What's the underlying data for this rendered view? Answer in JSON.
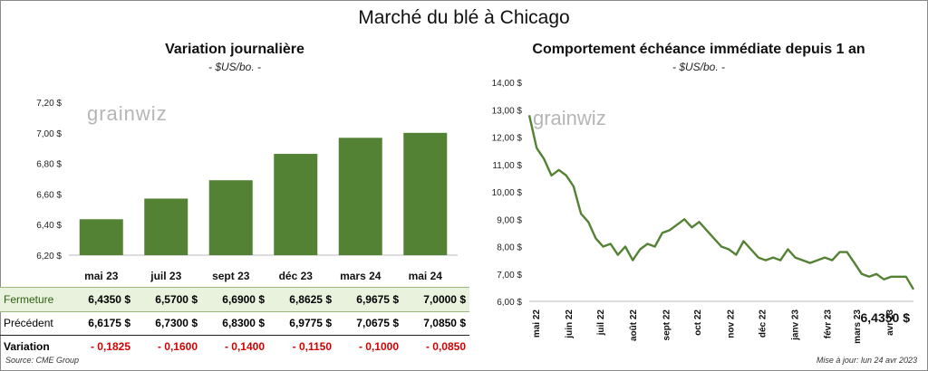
{
  "title": "Marché du blé à Chicago",
  "left": {
    "title": "Variation journalière",
    "unit": "- $US/bo. -",
    "logo": "grainwiz"
  },
  "right": {
    "title": "Comportement échéance immédiate depuis 1 an",
    "unit": "- $US/bo. -",
    "logo": "grainwiz",
    "last_value": "6,4350 $"
  },
  "table": {
    "close_label": "Fermeture",
    "prev_label": "Précédent",
    "var_label": "Variation",
    "close": [
      "6,4350  $",
      "6,5700  $",
      "6,6900  $",
      "6,8625  $",
      "6,9675  $",
      "7,0000  $"
    ],
    "prev": [
      "6,6175  $",
      "6,7300  $",
      "6,8300  $",
      "6,9775  $",
      "7,0675  $",
      "7,0850  $"
    ],
    "variation": [
      "- 0,1825",
      "- 0,1600",
      "- 0,1400",
      "- 0,1150",
      "- 0,1000",
      "- 0,0850"
    ]
  },
  "source": "Source: CME Group",
  "updated": "Mise à jour: lun 24 avr 2023",
  "colors": {
    "bar": "#548235",
    "line": "#548235",
    "negative": "#d40000",
    "highlight_row": "#e8f2dc"
  },
  "chart_data": [
    {
      "type": "bar",
      "categories": [
        "mai 23",
        "juil 23",
        "sept 23",
        "déc 23",
        "mars 24",
        "mai 24"
      ],
      "values": [
        6.435,
        6.57,
        6.69,
        6.8625,
        6.9675,
        7.0
      ],
      "yticks": [
        "6,20 $",
        "6,40 $",
        "6,60 $",
        "6,80 $",
        "7,00 $",
        "7,20 $"
      ],
      "ylim": [
        6.2,
        7.2
      ],
      "title": "Variation journalière"
    },
    {
      "type": "line",
      "xticks": [
        "mai 22",
        "juin 22",
        "juil 22",
        "août 22",
        "sept 22",
        "oct 22",
        "nov 22",
        "déc 22",
        "janv 23",
        "févr 23",
        "mars 23",
        "avr 23"
      ],
      "yticks": [
        "6,00 $",
        "7,00 $",
        "8,00 $",
        "9,00 $",
        "10,00 $",
        "11,00 $",
        "12,00 $",
        "13,00 $",
        "14,00 $"
      ],
      "ylim": [
        6,
        14
      ],
      "x": [
        "2022-04-25",
        "2022-05-02",
        "2022-05-09",
        "2022-05-16",
        "2022-05-23",
        "2022-05-30",
        "2022-06-06",
        "2022-06-13",
        "2022-06-20",
        "2022-06-27",
        "2022-07-04",
        "2022-07-11",
        "2022-07-18",
        "2022-07-25",
        "2022-08-01",
        "2022-08-08",
        "2022-08-15",
        "2022-08-22",
        "2022-08-29",
        "2022-09-05",
        "2022-09-12",
        "2022-09-19",
        "2022-09-26",
        "2022-10-03",
        "2022-10-10",
        "2022-10-17",
        "2022-10-24",
        "2022-10-31",
        "2022-11-07",
        "2022-11-14",
        "2022-11-21",
        "2022-11-28",
        "2022-12-05",
        "2022-12-12",
        "2022-12-19",
        "2022-12-26",
        "2023-01-02",
        "2023-01-09",
        "2023-01-16",
        "2023-01-23",
        "2023-01-30",
        "2023-02-06",
        "2023-02-13",
        "2023-02-20",
        "2023-02-27",
        "2023-03-06",
        "2023-03-13",
        "2023-03-20",
        "2023-03-27",
        "2023-04-03",
        "2023-04-10",
        "2023-04-17",
        "2023-04-24"
      ],
      "values": [
        12.8,
        11.6,
        11.2,
        10.6,
        10.8,
        10.6,
        10.2,
        9.2,
        8.9,
        8.3,
        8.0,
        8.1,
        7.7,
        8.0,
        7.5,
        7.9,
        8.1,
        8.0,
        8.5,
        8.6,
        8.8,
        9.0,
        8.7,
        8.9,
        8.6,
        8.3,
        8.0,
        7.9,
        7.7,
        8.2,
        7.9,
        7.6,
        7.5,
        7.6,
        7.5,
        7.9,
        7.6,
        7.5,
        7.4,
        7.5,
        7.6,
        7.5,
        7.8,
        7.8,
        7.4,
        7.0,
        6.9,
        7.0,
        6.8,
        6.9,
        6.9,
        6.9,
        6.435
      ],
      "title": "Comportement échéance immédiate depuis 1 an"
    }
  ]
}
